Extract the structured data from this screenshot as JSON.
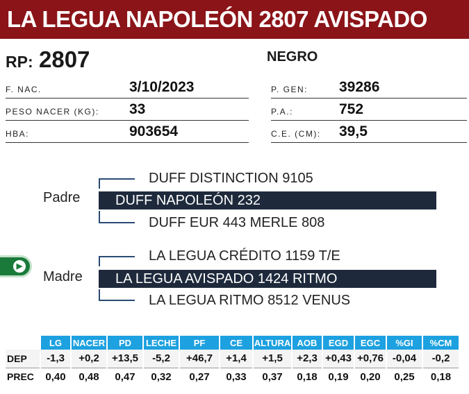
{
  "title": "LA LEGUA NAPOLEÓN 2807 AVISPADO",
  "rp": {
    "label": "RP:",
    "value": "2807"
  },
  "color": "NEGRO",
  "fields_left": [
    {
      "label": "F. NAC.",
      "value": "3/10/2023"
    },
    {
      "label": "PESO NACER (KG):",
      "value": "33"
    },
    {
      "label": "HBA:",
      "value": "903654"
    }
  ],
  "fields_right": [
    {
      "label": "P. GEN:",
      "value": "39286"
    },
    {
      "label": "P.A.:",
      "value": "752"
    },
    {
      "label": "C.E. (CM):",
      "value": "39,5"
    }
  ],
  "pedigree": {
    "padre": {
      "label": "Padre",
      "name": "DUFF NAPOLEÓN 232",
      "sire": "DUFF DISTINCTION 9105",
      "dam": "DUFF EUR 443 MERLE 808"
    },
    "madre": {
      "label": "Madre",
      "name": "LA LEGUA AVISPADO 1424 RITMO",
      "sire": "LA LEGUA CRÉDITO 1159 T/E",
      "dam": "LA LEGUA RITMO 8512 VENUS"
    }
  },
  "nav_pill": {
    "icon": "chevron-right-icon",
    "glyph": "▶"
  },
  "dep_table": {
    "headers": [
      "LG",
      "NACER",
      "PD",
      "LECHE",
      "PF",
      "CE",
      "ALTURA",
      "AOB",
      "EGD",
      "EGC",
      "%GI",
      "%CM"
    ],
    "rows": [
      {
        "label": "DEP",
        "values": [
          "-1,3",
          "+0,2",
          "+13,5",
          "-5,2",
          "+46,7",
          "+1,4",
          "+1,5",
          "+2,3",
          "+0,43",
          "+0,76",
          "-0,04",
          "-0,2"
        ]
      },
      {
        "label": "PREC",
        "values": [
          "0,40",
          "0,48",
          "0,47",
          "0,32",
          "0,27",
          "0,33",
          "0,37",
          "0,18",
          "0,19",
          "0,20",
          "0,25",
          "0,18"
        ]
      }
    ]
  },
  "colors": {
    "title_bg": "#8b1418",
    "name_bar_bg": "#1e2a3c",
    "table_header_bg": "#1da1e0",
    "tree_line": "#2a4a73",
    "pill_bg": "#1a7a3a"
  }
}
